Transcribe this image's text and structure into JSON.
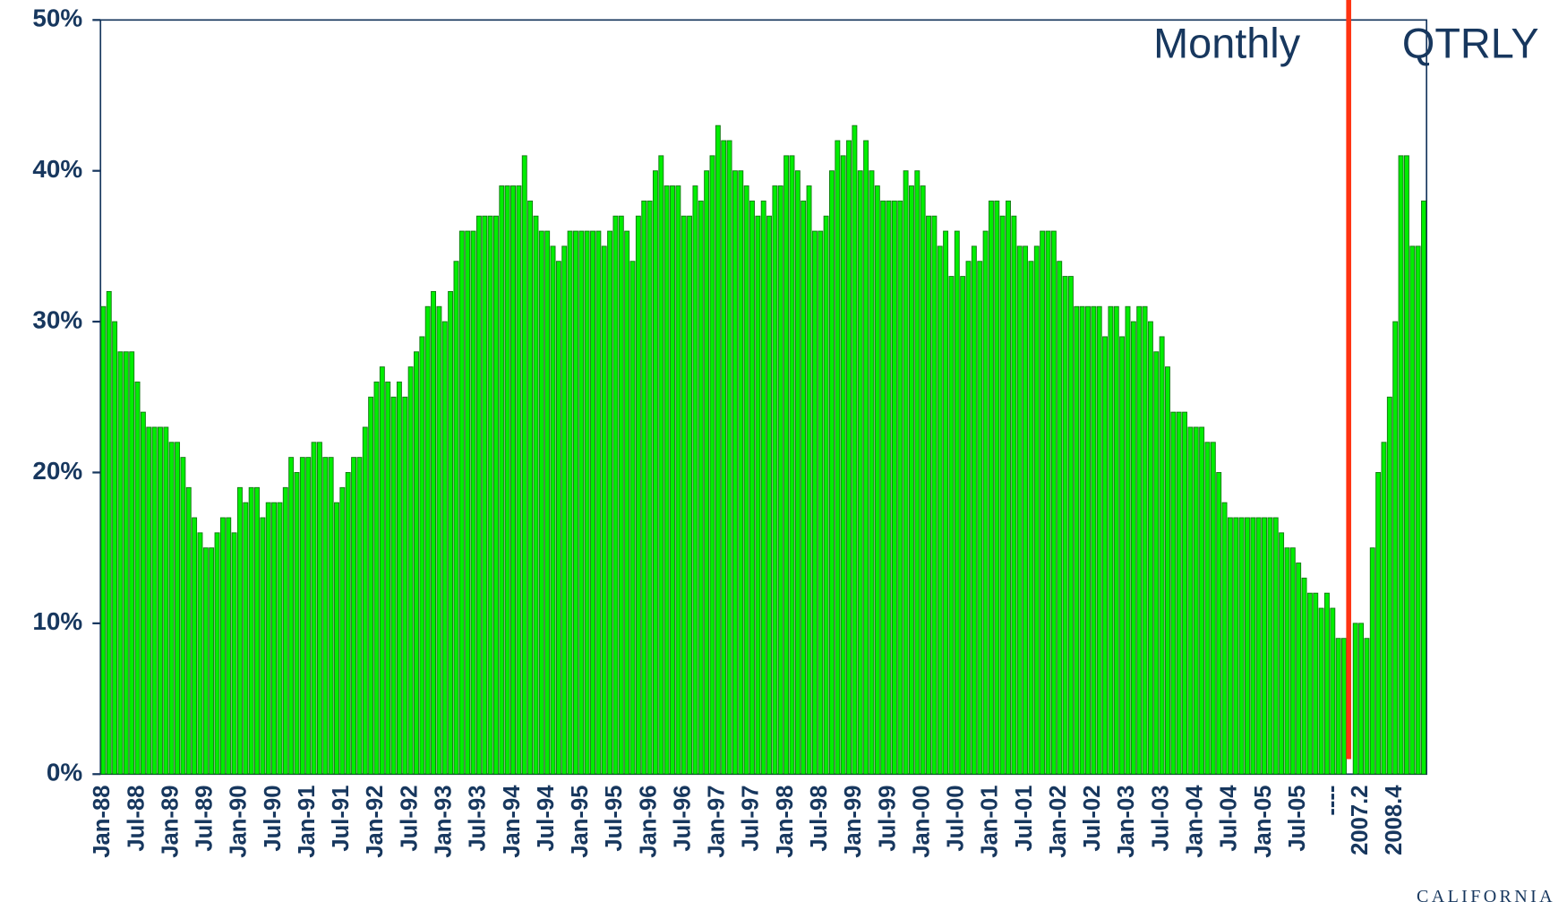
{
  "chart_data": {
    "type": "bar",
    "annotations": [
      "Monthly",
      "QTRLY"
    ],
    "logo_text": "CALIFORNIA",
    "color": "#00ee00",
    "ylim": [
      0,
      50
    ],
    "yticks": [
      {
        "value": 0,
        "label": "0%"
      },
      {
        "value": 10,
        "label": "10%"
      },
      {
        "value": 20,
        "label": "20%"
      },
      {
        "value": 30,
        "label": "30%"
      },
      {
        "value": 40,
        "label": "40%"
      },
      {
        "value": 50,
        "label": "50%"
      }
    ],
    "categories": [
      "Jan-88",
      null,
      null,
      null,
      null,
      null,
      "Jul-88",
      null,
      null,
      null,
      null,
      null,
      "Jan-89",
      null,
      null,
      null,
      null,
      null,
      "Jul-89",
      null,
      null,
      null,
      null,
      null,
      "Jan-90",
      null,
      null,
      null,
      null,
      null,
      "Jul-90",
      null,
      null,
      null,
      null,
      null,
      "Jan-91",
      null,
      null,
      null,
      null,
      null,
      "Jul-91",
      null,
      null,
      null,
      null,
      null,
      "Jan-92",
      null,
      null,
      null,
      null,
      null,
      "Jul-92",
      null,
      null,
      null,
      null,
      null,
      "Jan-93",
      null,
      null,
      null,
      null,
      null,
      "Jul-93",
      null,
      null,
      null,
      null,
      null,
      "Jan-94",
      null,
      null,
      null,
      null,
      null,
      "Jul-94",
      null,
      null,
      null,
      null,
      null,
      "Jan-95",
      null,
      null,
      null,
      null,
      null,
      "Jul-95",
      null,
      null,
      null,
      null,
      null,
      "Jan-96",
      null,
      null,
      null,
      null,
      null,
      "Jul-96",
      null,
      null,
      null,
      null,
      null,
      "Jan-97",
      null,
      null,
      null,
      null,
      null,
      "Jul-97",
      null,
      null,
      null,
      null,
      null,
      "Jan-98",
      null,
      null,
      null,
      null,
      null,
      "Jul-98",
      null,
      null,
      null,
      null,
      null,
      "Jan-99",
      null,
      null,
      null,
      null,
      null,
      "Jul-99",
      null,
      null,
      null,
      null,
      null,
      "Jan-00",
      null,
      null,
      null,
      null,
      null,
      "Jul-00",
      null,
      null,
      null,
      null,
      null,
      "Jan-01",
      null,
      null,
      null,
      null,
      null,
      "Jul-01",
      null,
      null,
      null,
      null,
      null,
      "Jan-02",
      null,
      null,
      null,
      null,
      null,
      "Jul-02",
      null,
      null,
      null,
      null,
      null,
      "Jan-03",
      null,
      null,
      null,
      null,
      null,
      "Jul-03",
      null,
      null,
      null,
      null,
      null,
      "Jan-04",
      null,
      null,
      null,
      null,
      null,
      "Jul-04",
      null,
      null,
      null,
      null,
      null,
      "Jan-05",
      null,
      null,
      null,
      null,
      null,
      "Jul-05",
      null,
      null,
      null,
      null,
      null,
      "----",
      null,
      null,
      null,
      null,
      "2007.2",
      null,
      null,
      null,
      null,
      null,
      "2008.4",
      null,
      null,
      null,
      null,
      null
    ],
    "values": [
      31,
      32,
      30,
      28,
      28,
      28,
      26,
      24,
      23,
      23,
      23,
      23,
      22,
      22,
      21,
      19,
      17,
      16,
      15,
      15,
      16,
      17,
      17,
      16,
      19,
      18,
      19,
      19,
      17,
      18,
      18,
      18,
      19,
      21,
      20,
      21,
      21,
      22,
      22,
      21,
      21,
      18,
      19,
      20,
      21,
      21,
      23,
      25,
      26,
      27,
      26,
      25,
      26,
      25,
      27,
      28,
      29,
      31,
      32,
      31,
      30,
      32,
      34,
      36,
      36,
      36,
      37,
      37,
      37,
      37,
      39,
      39,
      39,
      39,
      41,
      38,
      37,
      36,
      36,
      35,
      34,
      35,
      36,
      36,
      36,
      36,
      36,
      36,
      35,
      36,
      37,
      37,
      36,
      34,
      37,
      38,
      38,
      40,
      41,
      39,
      39,
      39,
      37,
      37,
      39,
      38,
      40,
      41,
      43,
      42,
      42,
      40,
      40,
      39,
      38,
      37,
      38,
      37,
      39,
      39,
      41,
      41,
      40,
      38,
      39,
      36,
      36,
      37,
      40,
      42,
      41,
      42,
      43,
      40,
      42,
      40,
      39,
      38,
      38,
      38,
      38,
      40,
      39,
      40,
      39,
      37,
      37,
      35,
      36,
      33,
      36,
      33,
      34,
      35,
      34,
      36,
      38,
      38,
      37,
      38,
      37,
      35,
      35,
      34,
      35,
      36,
      36,
      36,
      34,
      33,
      33,
      31,
      31,
      31,
      31,
      31,
      29,
      31,
      31,
      29,
      31,
      30,
      31,
      31,
      30,
      28,
      29,
      27,
      24,
      24,
      24,
      23,
      23,
      23,
      22,
      22,
      20,
      18,
      17,
      17,
      17,
      17,
      17,
      17,
      17,
      17,
      17,
      16,
      15,
      15,
      14,
      13,
      12,
      12,
      11,
      12,
      11,
      9,
      9,
      null,
      10,
      10,
      9,
      15,
      20,
      22,
      25,
      30,
      41,
      41,
      35,
      35,
      38
    ]
  }
}
